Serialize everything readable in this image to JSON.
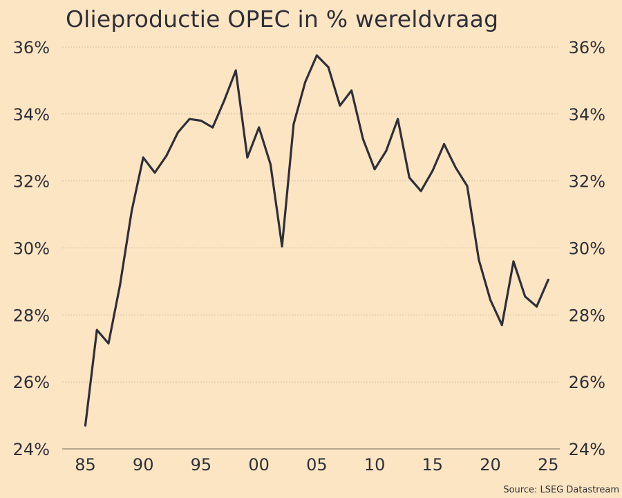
{
  "chart_data": {
    "type": "line",
    "title": "Olieproductie OPEC in % wereldvraag",
    "source": "Source: LSEG Datastream",
    "xlabel": "",
    "ylabel": "",
    "xlim": [
      1983,
      2026
    ],
    "ylim": [
      24,
      36
    ],
    "x_ticks": [
      1985,
      1990,
      1995,
      2000,
      2005,
      2010,
      2015,
      2020,
      2025
    ],
    "x_tick_labels": [
      "85",
      "90",
      "95",
      "00",
      "05",
      "10",
      "15",
      "20",
      "25"
    ],
    "y_ticks": [
      24,
      26,
      28,
      30,
      32,
      34,
      36
    ],
    "y_tick_labels": [
      "24%",
      "26%",
      "28%",
      "30%",
      "32%",
      "34%",
      "36%"
    ],
    "grid": {
      "horizontal": true,
      "vertical": false
    },
    "legend": "none",
    "line_color": "#2f2f3a",
    "grid_color": "#bfb39f",
    "series": [
      {
        "x": [
          1985,
          1986,
          1987,
          1988,
          1989,
          1990,
          1991,
          1992,
          1993,
          1994,
          1995,
          1996,
          1997,
          1998,
          1999,
          2000,
          2001,
          2002,
          2003,
          2004,
          2005,
          2006,
          2007,
          2008,
          2009,
          2010,
          2011,
          2012,
          2013,
          2014,
          2015,
          2016,
          2017,
          2018,
          2019,
          2020,
          2021,
          2022,
          2023,
          2024,
          2025
        ],
        "values": [
          24.7,
          27.55,
          27.15,
          28.9,
          31.1,
          32.7,
          32.25,
          32.75,
          33.45,
          33.85,
          33.8,
          33.6,
          34.4,
          35.3,
          32.7,
          33.6,
          32.5,
          30.05,
          33.7,
          34.95,
          35.75,
          35.4,
          34.25,
          34.7,
          33.25,
          32.35,
          32.9,
          33.85,
          32.1,
          31.7,
          32.3,
          33.1,
          32.4,
          31.85,
          29.65,
          28.45,
          27.7,
          29.6,
          28.55,
          28.25,
          29.05
        ]
      }
    ]
  }
}
